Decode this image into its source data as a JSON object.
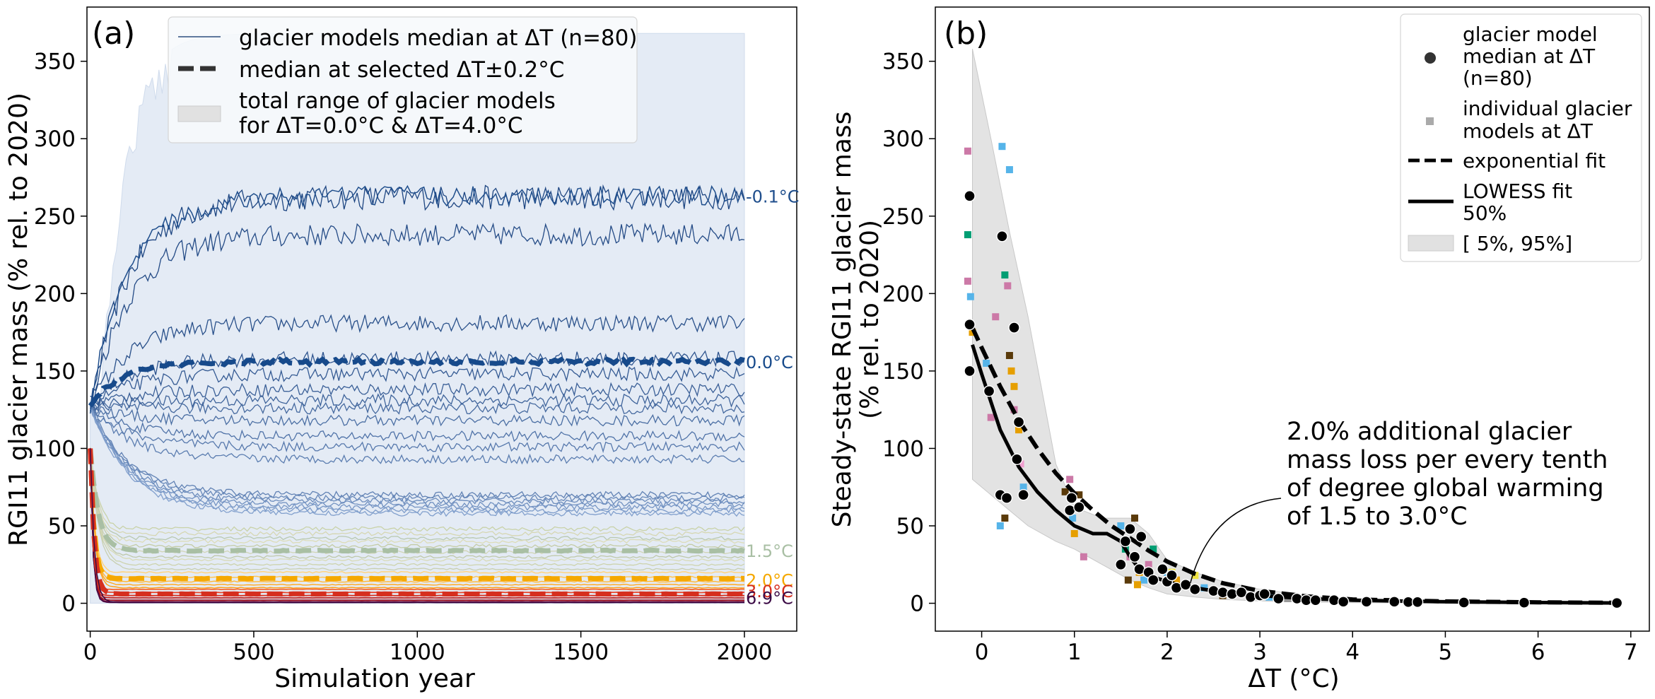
{
  "chart_data": [
    {
      "type": "line",
      "panel_label": "(a)",
      "xlabel": "Simulation year",
      "ylabel": "RGI11 glacier mass (% rel. to 2020)",
      "xlim": [
        -10,
        2160
      ],
      "ylim": [
        -18,
        385
      ],
      "xticks": [
        0,
        500,
        1000,
        1500,
        2000
      ],
      "yticks": [
        0,
        50,
        100,
        150,
        200,
        250,
        300,
        350
      ],
      "legend": {
        "position": "top-center",
        "entries": [
          "glacier models median at ΔT (n=80)",
          "median at selected ΔT±0.2°C",
          "total range of glacier models",
          "for ΔT=0.0°C & ΔT=4.0°C"
        ]
      },
      "range_band": {
        "label": "total range of glacier models for ΔT=0.0°C & ΔT=4.0°C",
        "upper_plateau": 368,
        "lower": 0,
        "color": "#e4ebf5"
      },
      "blue_series_plateaus": [
        262,
        238,
        181,
        158,
        148,
        138,
        131,
        126,
        118,
        108,
        101,
        93,
        70,
        68,
        66,
        64,
        62,
        60,
        58
      ],
      "blue_series_start": 127,
      "light_series_plateaus": [
        48,
        45,
        42,
        40,
        37,
        33,
        30,
        28,
        25,
        22
      ],
      "orange_series_plateaus": [
        20,
        17,
        14,
        12,
        10
      ],
      "red_series_plateaus": [
        9,
        7,
        5,
        3.5,
        2,
        1,
        0.5
      ],
      "selected_medians": [
        {
          "label": "-0.1°C",
          "plateau": 263,
          "color": "#1f4e8c",
          "dashed": false
        },
        {
          "label": "0.0°C",
          "plateau": 156,
          "color": "#174a8b",
          "dashed": true
        },
        {
          "label": "1.5°C",
          "plateau": 34,
          "color": "#a9bfa4",
          "dashed": true
        },
        {
          "label": "2.0°C",
          "plateau": 16,
          "color": "#f5a800",
          "dashed": true
        },
        {
          "label": "3.0°C",
          "plateau": 6,
          "color": "#d62f1f",
          "dashed": true
        },
        {
          "label": "6.9°C",
          "plateau": 0.5,
          "color": "#3b0a45",
          "dashed": false
        }
      ]
    },
    {
      "type": "scatter",
      "panel_label": "(b)",
      "xlabel": "ΔT (°C)",
      "ylabel_line1": "Steady-state RGI11 glacier mass",
      "ylabel_line2": "(% rel. to 2020)",
      "xlim": [
        -0.5,
        7.2
      ],
      "ylim": [
        -18,
        385
      ],
      "xticks": [
        0,
        1,
        2,
        3,
        4,
        5,
        6,
        7
      ],
      "yticks": [
        0,
        50,
        100,
        150,
        200,
        250,
        300,
        350
      ],
      "legend": {
        "position": "top-right",
        "entries": [
          "glacier model",
          "median at ΔT",
          "(n=80)",
          "individual glacier",
          "models at ΔT",
          "exponential fit",
          "LOWESS fit",
          "50%",
          "[ 5%, 95%]"
        ]
      },
      "annotation": [
        "2.0% additional glacier",
        "mass loss per every tenth",
        "of degree global warming",
        "of 1.5 to 3.0°C"
      ],
      "annotation_xy": [
        2.25,
        13
      ],
      "median_points": {
        "x": [
          -0.13,
          -0.13,
          -0.13,
          0.08,
          0.2,
          0.22,
          0.27,
          0.35,
          0.38,
          0.4,
          0.45,
          0.95,
          0.97,
          1.05,
          1.5,
          1.55,
          1.6,
          1.65,
          1.7,
          1.72,
          1.8,
          1.85,
          1.95,
          2.0,
          2.05,
          2.1,
          2.2,
          2.3,
          2.5,
          2.6,
          2.7,
          2.8,
          2.9,
          3.0,
          3.05,
          3.2,
          3.4,
          3.5,
          3.6,
          3.8,
          3.9,
          4.15,
          4.45,
          4.6,
          4.7,
          5.2,
          5.85,
          6.85
        ],
        "y": [
          263,
          180,
          150,
          137,
          70,
          237,
          68,
          178,
          93,
          117,
          70,
          60,
          68,
          62,
          25,
          40,
          48,
          30,
          22,
          43,
          20,
          15,
          22,
          14,
          18,
          10,
          12,
          9,
          8,
          7,
          6,
          7,
          4,
          5,
          6,
          3,
          3,
          2,
          2,
          2,
          1,
          1,
          1,
          0.8,
          0.8,
          0.5,
          0.4,
          0.2
        ]
      },
      "individual_points": {
        "x": [
          -0.15,
          -0.15,
          -0.15,
          -0.12,
          -0.1,
          0.05,
          0.1,
          0.22,
          0.25,
          0.28,
          0.3,
          0.32,
          0.35,
          0.4,
          0.42,
          0.45,
          0.2,
          0.25,
          0.15,
          0.95,
          0.98,
          1.0,
          1.05,
          1.1,
          1.5,
          1.55,
          1.6,
          1.65,
          1.7,
          1.75,
          1.8,
          1.85,
          2.0,
          2.1,
          2.2,
          2.3,
          2.4,
          2.5,
          2.6,
          2.8,
          3.0,
          3.1,
          3.3,
          0.3,
          0.35,
          0.9,
          1.58,
          1.68,
          2.05
        ],
        "y": [
          292,
          238,
          208,
          198,
          175,
          155,
          120,
          295,
          212,
          205,
          280,
          150,
          125,
          112,
          90,
          75,
          50,
          55,
          185,
          80,
          55,
          45,
          70,
          30,
          50,
          35,
          30,
          55,
          20,
          15,
          25,
          35,
          20,
          15,
          12,
          18,
          10,
          8,
          5,
          6,
          5,
          4,
          3,
          160,
          140,
          72,
          15,
          12,
          20
        ],
        "colors": [
          "#cc79a7",
          "#009e73",
          "#cc79a7",
          "#56b4e9",
          "#e69f00",
          "#56b4e9",
          "#cc79a7",
          "#56b4e9",
          "#009e73",
          "#cc79a7",
          "#56b4e9",
          "#e69f00",
          "#cc79a7",
          "#e69f00",
          "#f0a0d0",
          "#56b4e9",
          "#56b4e9",
          "#5a3a0a",
          "#cc79a7",
          "#cc79a7",
          "#56b4e9",
          "#e69f00",
          "#5a3a0a",
          "#cc79a7",
          "#56b4e9",
          "#009e73",
          "#cc79a7",
          "#5a3a0a",
          "#e69f00",
          "#56b4e9",
          "#cc79a7",
          "#009e73",
          "#56b4e9",
          "#e69f00",
          "#cc79a7",
          "#f0e442",
          "#56b4e9",
          "#cc79a7",
          "#5a3a0a",
          "#f0a0d0",
          "#cc79a7",
          "#56b4e9",
          "#999999",
          "#5a3a0a",
          "#e69f00",
          "#5a3a0a",
          "#5a3a0a",
          "#e69f00",
          "#f0e442"
        ]
      },
      "exponential_fit": {
        "x": [
          -0.1,
          0.0,
          0.2,
          0.4,
          0.6,
          0.8,
          1.0,
          1.2,
          1.4,
          1.6,
          1.8,
          2.0,
          2.3,
          2.6,
          3.0,
          3.5,
          4.0,
          5.0,
          6.0,
          6.9
        ],
        "y": [
          178,
          165,
          140,
          118,
          100,
          84,
          71,
          60,
          50,
          42,
          34,
          27,
          19,
          13,
          8,
          4.5,
          2.5,
          1.2,
          0.6,
          0.3
        ]
      },
      "lowess_fit": {
        "x": [
          -0.1,
          0.0,
          0.2,
          0.4,
          0.6,
          0.8,
          1.0,
          1.2,
          1.35,
          1.5,
          1.6,
          1.7,
          1.8,
          2.0,
          2.2,
          2.5,
          3.0,
          3.5,
          4.0,
          5.0,
          6.0,
          6.9
        ],
        "y": [
          167,
          148,
          112,
          88,
          72,
          60,
          50,
          45,
          45,
          40,
          30,
          22,
          18,
          14,
          11,
          8,
          5,
          3,
          2,
          1,
          0.5,
          0.2
        ]
      },
      "band": {
        "x": [
          -0.1,
          0.1,
          0.3,
          0.5,
          0.8,
          1.0,
          1.3,
          1.6,
          1.8,
          2.0,
          2.3,
          2.6,
          3.0,
          3.5,
          4.0,
          5.0,
          6.0,
          6.9
        ],
        "upper": [
          358,
          300,
          240,
          185,
          90,
          62,
          55,
          55,
          45,
          28,
          20,
          14,
          9,
          5,
          3,
          1.5,
          0.8,
          0.4
        ],
        "lower": [
          80,
          70,
          60,
          50,
          40,
          35,
          25,
          15,
          10,
          6,
          4,
          2.5,
          1.5,
          0.8,
          0.4,
          0.2,
          0.1,
          0.05
        ]
      }
    }
  ]
}
